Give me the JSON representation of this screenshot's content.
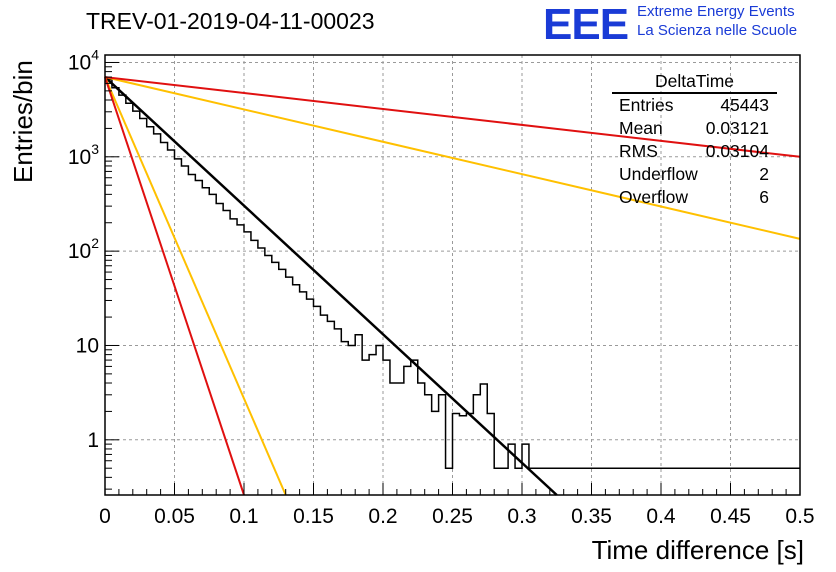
{
  "header": {
    "title": "TREV-01-2019-04-11-00023",
    "logo_text": "EEE",
    "tagline_1": "Extreme Energy Events",
    "tagline_2": "La Scienza nelle Scuole"
  },
  "stats_box": {
    "name": "DeltaTime",
    "rows": [
      {
        "label": "Entries",
        "value": "45443"
      },
      {
        "label": "Mean",
        "value": "0.03121"
      },
      {
        "label": "RMS",
        "value": "0.03104"
      },
      {
        "label": "Underflow",
        "value": "2"
      },
      {
        "label": "Overflow",
        "value": "6"
      }
    ]
  },
  "chart_data": {
    "type": "histogram",
    "xlabel": "Time difference [s]",
    "ylabel": "Entries/bin",
    "xlim": [
      0,
      0.5
    ],
    "ylim": [
      0.26,
      12000
    ],
    "y_scale": "log",
    "grid": true,
    "x_ticks": [
      "0",
      "0.05",
      "0.1",
      "0.15",
      "0.2",
      "0.25",
      "0.3",
      "0.35",
      "0.4",
      "0.45",
      "0.5"
    ],
    "y_ticks": [
      {
        "value": 1,
        "base": "1",
        "exp": ""
      },
      {
        "value": 10,
        "base": "10",
        "exp": ""
      },
      {
        "value": 100,
        "base": "10",
        "exp": "2"
      },
      {
        "value": 1000,
        "base": "10",
        "exp": "3"
      },
      {
        "value": 10000,
        "base": "10",
        "exp": "4"
      }
    ],
    "histogram": {
      "bin_width": 0.005,
      "color": "#000000",
      "counts": [
        6600,
        5400,
        4500,
        3700,
        3050,
        2550,
        2080,
        1750,
        1420,
        1180,
        950,
        800,
        650,
        560,
        470,
        400,
        320,
        270,
        220,
        190,
        160,
        130,
        108,
        90,
        76,
        64,
        53,
        44,
        37,
        31,
        26,
        21,
        18,
        15,
        11,
        10,
        13,
        7,
        8,
        10,
        7,
        4,
        4,
        6,
        7,
        4,
        3,
        2,
        3,
        0.5,
        1.9,
        1.8,
        1.9,
        3.0,
        3.9,
        1.9,
        0.5,
        0.5,
        0.9,
        0.5,
        0.9,
        0.5,
        0.5,
        0.5,
        0.5,
        0.5,
        0.5,
        0.5,
        0.5,
        0.5,
        0.5,
        0.5,
        0.5,
        0.5,
        0.5,
        0.5,
        0.5,
        0.5,
        0.5,
        0.5,
        0.5,
        0.5,
        0.5,
        0.5,
        0.5,
        0.5,
        0.5,
        0.5,
        0.5,
        0.5,
        0.5,
        0.5,
        0.5,
        0.5,
        0.5,
        0.5,
        0.5,
        0.5,
        0.5,
        0.5
      ]
    },
    "lines": [
      {
        "color": "#000000",
        "width": 2.5,
        "x0": 0,
        "y0": 7000,
        "x1": 0.325,
        "y1": 0.26
      },
      {
        "color": "#ffc000",
        "width": 2,
        "x0": 0,
        "y0": 7000,
        "x1": 0.5,
        "y1": 135
      },
      {
        "color": "#ffc000",
        "width": 2,
        "x0": 0,
        "y0": 7000,
        "x1": 0.13,
        "y1": 0.26
      },
      {
        "color": "#e01010",
        "width": 2,
        "x0": 0,
        "y0": 7000,
        "x1": 0.5,
        "y1": 1000
      },
      {
        "color": "#e01010",
        "width": 2,
        "x0": 0,
        "y0": 7000,
        "x1": 0.1,
        "y1": 0.26
      }
    ]
  }
}
